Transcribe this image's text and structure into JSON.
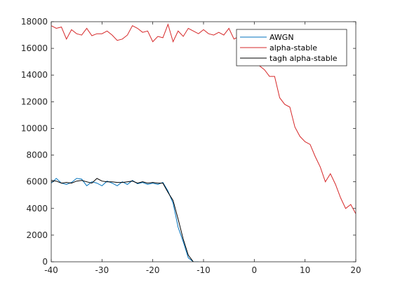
{
  "chart_data": {
    "type": "line",
    "xlim": [
      -40,
      20
    ],
    "ylim": [
      0,
      18000
    ],
    "x_ticks": [
      -40,
      -30,
      -20,
      -10,
      0,
      10,
      20
    ],
    "y_ticks": [
      0,
      2000,
      4000,
      6000,
      8000,
      10000,
      12000,
      14000,
      16000,
      18000
    ],
    "grid": false,
    "legend_position": "top-right",
    "series": [
      {
        "name": "AWGN",
        "color": "#0072BD",
        "x": [
          -40,
          -39,
          -38,
          -37,
          -36,
          -35,
          -34,
          -33,
          -32,
          -31,
          -30,
          -29,
          -28,
          -27,
          -26,
          -25,
          -24,
          -23,
          -22,
          -21,
          -20,
          -19,
          -18,
          -17,
          -16,
          -15,
          -14,
          -13,
          -12,
          -11
        ],
        "y": [
          5900,
          6250,
          5900,
          5800,
          5950,
          6250,
          6200,
          5700,
          6000,
          5900,
          5700,
          6050,
          5900,
          5700,
          6000,
          5800,
          6100,
          5850,
          5950,
          5800,
          5900,
          5800,
          5950,
          5300,
          4400,
          2600,
          1500,
          300,
          0,
          0
        ]
      },
      {
        "name": "alpha-stable",
        "color": "#D62728",
        "x": [
          -40,
          -39,
          -38,
          -37,
          -36,
          -35,
          -34,
          -33,
          -32,
          -31,
          -30,
          -29,
          -28,
          -27,
          -26,
          -25,
          -24,
          -23,
          -22,
          -21,
          -20,
          -19,
          -18,
          -17,
          -16,
          -15,
          -14,
          -13,
          -12,
          -11,
          -10,
          -9,
          -8,
          -7,
          -6,
          -5,
          -4,
          -3,
          -2,
          -1,
          0,
          1,
          2,
          3,
          4,
          5,
          6,
          7,
          8,
          9,
          10,
          11,
          12,
          13,
          14,
          15,
          16,
          17,
          18,
          19,
          20
        ],
        "y": [
          17700,
          17500,
          17600,
          16700,
          17400,
          17100,
          17000,
          17500,
          16950,
          17100,
          17100,
          17300,
          17000,
          16600,
          16700,
          17000,
          17700,
          17500,
          17200,
          17300,
          16500,
          16900,
          16800,
          17800,
          16500,
          17300,
          16900,
          17500,
          17300,
          17100,
          17400,
          17100,
          17000,
          17200,
          17000,
          17500,
          16700,
          16900,
          16500,
          16300,
          15400,
          14700,
          14400,
          13900,
          13900,
          12300,
          11800,
          11600,
          10100,
          9400,
          9000,
          8800,
          7900,
          7100,
          6000,
          6600,
          5800,
          4800,
          4000,
          4300,
          3600
        ]
      },
      {
        "name": "tagh alpha-stable",
        "color": "#000000",
        "x": [
          -40,
          -39,
          -38,
          -37,
          -36,
          -35,
          -34,
          -33,
          -32,
          -31,
          -30,
          -29,
          -28,
          -27,
          -26,
          -25,
          -24,
          -23,
          -22,
          -21,
          -20,
          -19,
          -18,
          -17,
          -16,
          -15,
          -14,
          -13,
          -12
        ],
        "y": [
          6100,
          6050,
          5900,
          5950,
          5900,
          6050,
          6100,
          6000,
          5900,
          6250,
          6050,
          6000,
          6000,
          5950,
          5950,
          6000,
          6050,
          5900,
          6000,
          5900,
          5950,
          5900,
          5900,
          5200,
          4600,
          3200,
          1700,
          500,
          0
        ]
      }
    ]
  }
}
